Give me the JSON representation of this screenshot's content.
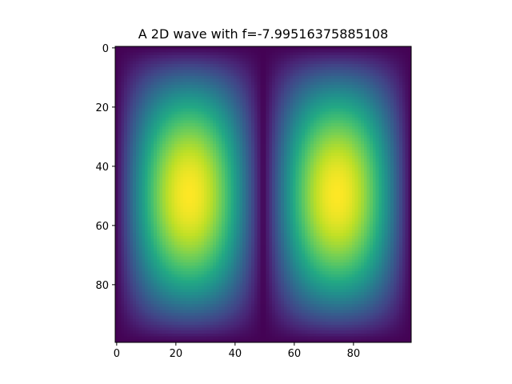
{
  "chart_data": {
    "type": "heatmap",
    "title": "A 2D wave with f=-7.99516375885108",
    "xlabel": "",
    "ylabel": "",
    "grid": false,
    "colormap": "viridis",
    "shape": [
      100,
      100
    ],
    "xlim": [
      -0.5,
      99.5
    ],
    "ylim": [
      99.5,
      -0.5
    ],
    "xticks": [
      0,
      20,
      40,
      60,
      80
    ],
    "yticks": [
      0,
      20,
      40,
      60,
      80
    ],
    "xtick_labels": [
      "0",
      "20",
      "40",
      "60",
      "80"
    ],
    "ytick_labels": [
      "0",
      "20",
      "40",
      "60",
      "80"
    ],
    "peaks": [
      {
        "x": 24,
        "y": 50
      },
      {
        "x": 75,
        "y": 50
      }
    ],
    "zero_lines": [
      {
        "x": 49.5
      }
    ]
  }
}
